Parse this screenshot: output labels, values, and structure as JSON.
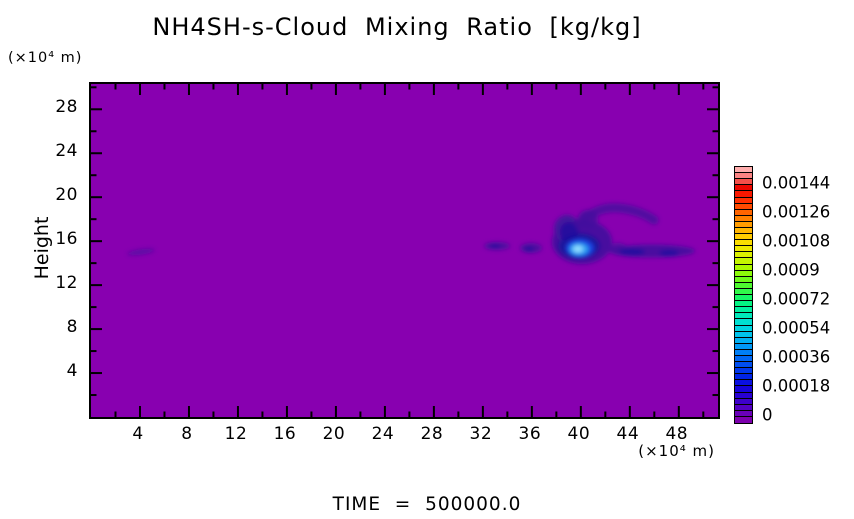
{
  "title": "NH4SH-s-Cloud Mixing Ratio [kg/kg]",
  "axes": {
    "x": {
      "unit_label": "(×10⁴ m)",
      "major_ticks": [
        4,
        8,
        12,
        16,
        20,
        24,
        28,
        32,
        36,
        40,
        44,
        48
      ],
      "minor_ticks": [
        2,
        6,
        10,
        14,
        18,
        22,
        26,
        30,
        34,
        38,
        42,
        46,
        50
      ]
    },
    "y": {
      "label": "Height",
      "unit_label": "(×10⁴ m)",
      "major_ticks": [
        4,
        8,
        12,
        16,
        20,
        24,
        28
      ],
      "minor_ticks": [
        2,
        6,
        10,
        14,
        18,
        22,
        26,
        30
      ]
    }
  },
  "colorbar": {
    "tick_labels_bottom_up": [
      "0",
      "0.00018",
      "0.00036",
      "0.00054",
      "0.00072",
      "0.0009",
      "0.00108",
      "0.00126",
      "0.00144"
    ],
    "segment_colors_bottom_up": [
      "#7d00ad",
      "#6900b8",
      "#5300c2",
      "#3d00cb",
      "#2800d3",
      "#1603da",
      "#0a10e1",
      "#0023e7",
      "#0037ec",
      "#004ef0",
      "#0066f4",
      "#007ff6",
      "#0098f6",
      "#00aff2",
      "#00c3ec",
      "#00d4e2",
      "#00e0d2",
      "#00e9bb",
      "#00efa0",
      "#04f383",
      "#16f666",
      "#30f84a",
      "#4ef930",
      "#6dfa1a",
      "#8cfa0a",
      "#aaf800",
      "#c4f500",
      "#dbf000",
      "#eee900",
      "#fbdd00",
      "#ffcb00",
      "#ffb500",
      "#ff9c00",
      "#ff8100",
      "#ff6500",
      "#ff4a00",
      "#ff2f00",
      "#f81800",
      "#ec0700",
      "#f4504a",
      "#fb8484",
      "#ffadad"
    ]
  },
  "footer": {
    "time_label": "TIME  =  500000.0"
  },
  "colors": {
    "plot_background": "#8800b0",
    "axis": "#000000",
    "cloud_outer_indigo": "#44129e",
    "cloud_navy": "#1c129e",
    "cloud_blue": "#1b3fe0",
    "cloud_bright_blue": "#2da1f2",
    "cloud_core_pale_cyan": "#8fdcff"
  },
  "chart_data": {
    "type": "heatmap",
    "title": "NH4SH-s-Cloud Mixing Ratio [kg/kg]",
    "xlabel": "(×10⁴ m)",
    "ylabel": "Height (×10⁴ m)",
    "x_range": [
      0,
      51.2
    ],
    "y_range": [
      0,
      30.3
    ],
    "x_ticks": [
      4,
      8,
      12,
      16,
      20,
      24,
      28,
      32,
      36,
      40,
      44,
      48
    ],
    "y_ticks": [
      4,
      8,
      12,
      16,
      20,
      24,
      28
    ],
    "colorbar_values": [
      0,
      0.00018,
      0.00036,
      0.00054,
      0.00072,
      0.0009,
      0.00108,
      0.00126,
      0.00144
    ],
    "background_value": 0,
    "legend_position": "right",
    "features": [
      {
        "name": "faint-left-streak",
        "x": [
          2.8,
          5.2
        ],
        "height": 15.1,
        "peak_value": 5e-05
      },
      {
        "name": "small-cloud-patches",
        "x": [
          32.2,
          37.0
        ],
        "height": 15.0,
        "peak_value": 0.0001
      },
      {
        "name": "main-cloud",
        "x": [
          37.5,
          42.5
        ],
        "height": [
          13.8,
          18.0
        ],
        "peak_value": 0.0005,
        "core": {
          "x": 39.8,
          "height": 15.2
        }
      },
      {
        "name": "arc-above-main-cloud",
        "x": [
          39.5,
          46.0
        ],
        "height": [
          17.5,
          19.3
        ],
        "peak_value": 0.0001
      },
      {
        "name": "right-cloud-streak",
        "x": [
          42.6,
          49.2
        ],
        "height": 15.0,
        "peak_value": 0.00015
      }
    ],
    "time": "500000.0"
  }
}
